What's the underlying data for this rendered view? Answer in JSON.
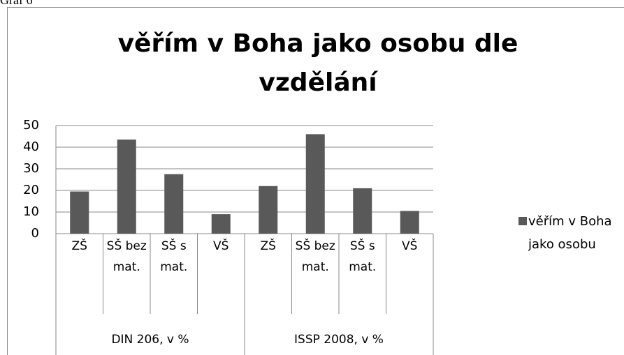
{
  "caption": "Graf 6",
  "chart_data": {
    "type": "bar",
    "title": "věřím v Boha jako osobu dle vzdělání",
    "categories": [
      "ZŠ",
      "SŠ bez mat.",
      "SŠ s mat.",
      "VŠ",
      "ZŠ",
      "SŠ bez mat.",
      "SŠ s mat.",
      "VŠ"
    ],
    "category_groups": [
      "DIN 206, v %",
      "ISSP 2008, v %"
    ],
    "series": [
      {
        "name": "věřím v Boha jako osobu",
        "color": "#595959",
        "values": [
          19.5,
          43.5,
          27.5,
          9,
          22,
          46,
          21,
          10.5
        ]
      }
    ],
    "ylim": [
      0,
      50
    ],
    "yticks": [
      0,
      10,
      20,
      30,
      40,
      50
    ],
    "grid": true,
    "legend": "right"
  }
}
